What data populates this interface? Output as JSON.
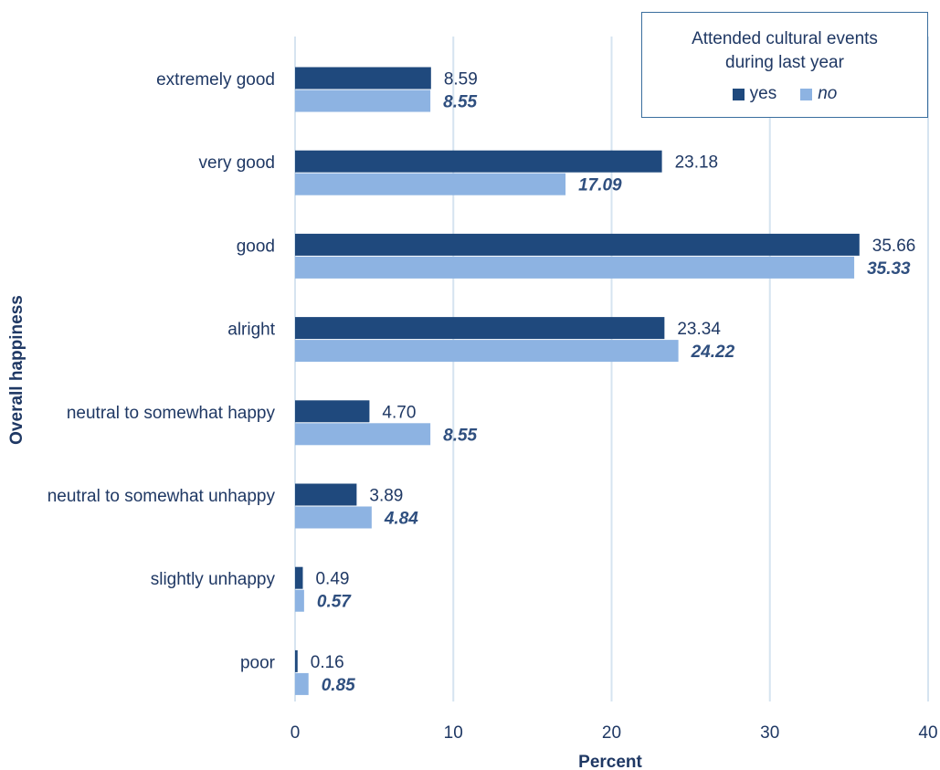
{
  "chart_data": {
    "type": "bar",
    "orientation": "horizontal",
    "categories": [
      "extremely good",
      "very good",
      "good",
      "alright",
      "neutral to somewhat happy",
      "neutral to somewhat unhappy",
      "slightly unhappy",
      "poor"
    ],
    "series": [
      {
        "name": "yes",
        "color": "#1f497d",
        "values": [
          8.59,
          23.18,
          35.66,
          23.34,
          4.7,
          3.89,
          0.49,
          0.16
        ],
        "labels": [
          "8.59",
          "23.18",
          "35.66",
          "23.34",
          "4.70",
          "3.89",
          "0.49",
          "0.16"
        ]
      },
      {
        "name": "no",
        "color": "#8db3e2",
        "values": [
          8.55,
          17.09,
          35.33,
          24.22,
          8.55,
          4.84,
          0.57,
          0.85
        ],
        "labels": [
          "8.55",
          "17.09",
          "35.33",
          "24.22",
          "8.55",
          "4.84",
          "0.57",
          "0.85"
        ]
      }
    ],
    "xlabel": "Percent",
    "ylabel": "Overall happiness",
    "xlim": [
      0,
      40
    ],
    "xticks": [
      0,
      10,
      20,
      30,
      40
    ],
    "xtick_labels": [
      "0",
      "10",
      "20",
      "30",
      "40"
    ],
    "grid": "vertical",
    "gridline_color": "#d6e4f0",
    "legend": {
      "title_line1": "Attended cultural events",
      "title_line2": "during last year",
      "placement": "top-right"
    }
  }
}
